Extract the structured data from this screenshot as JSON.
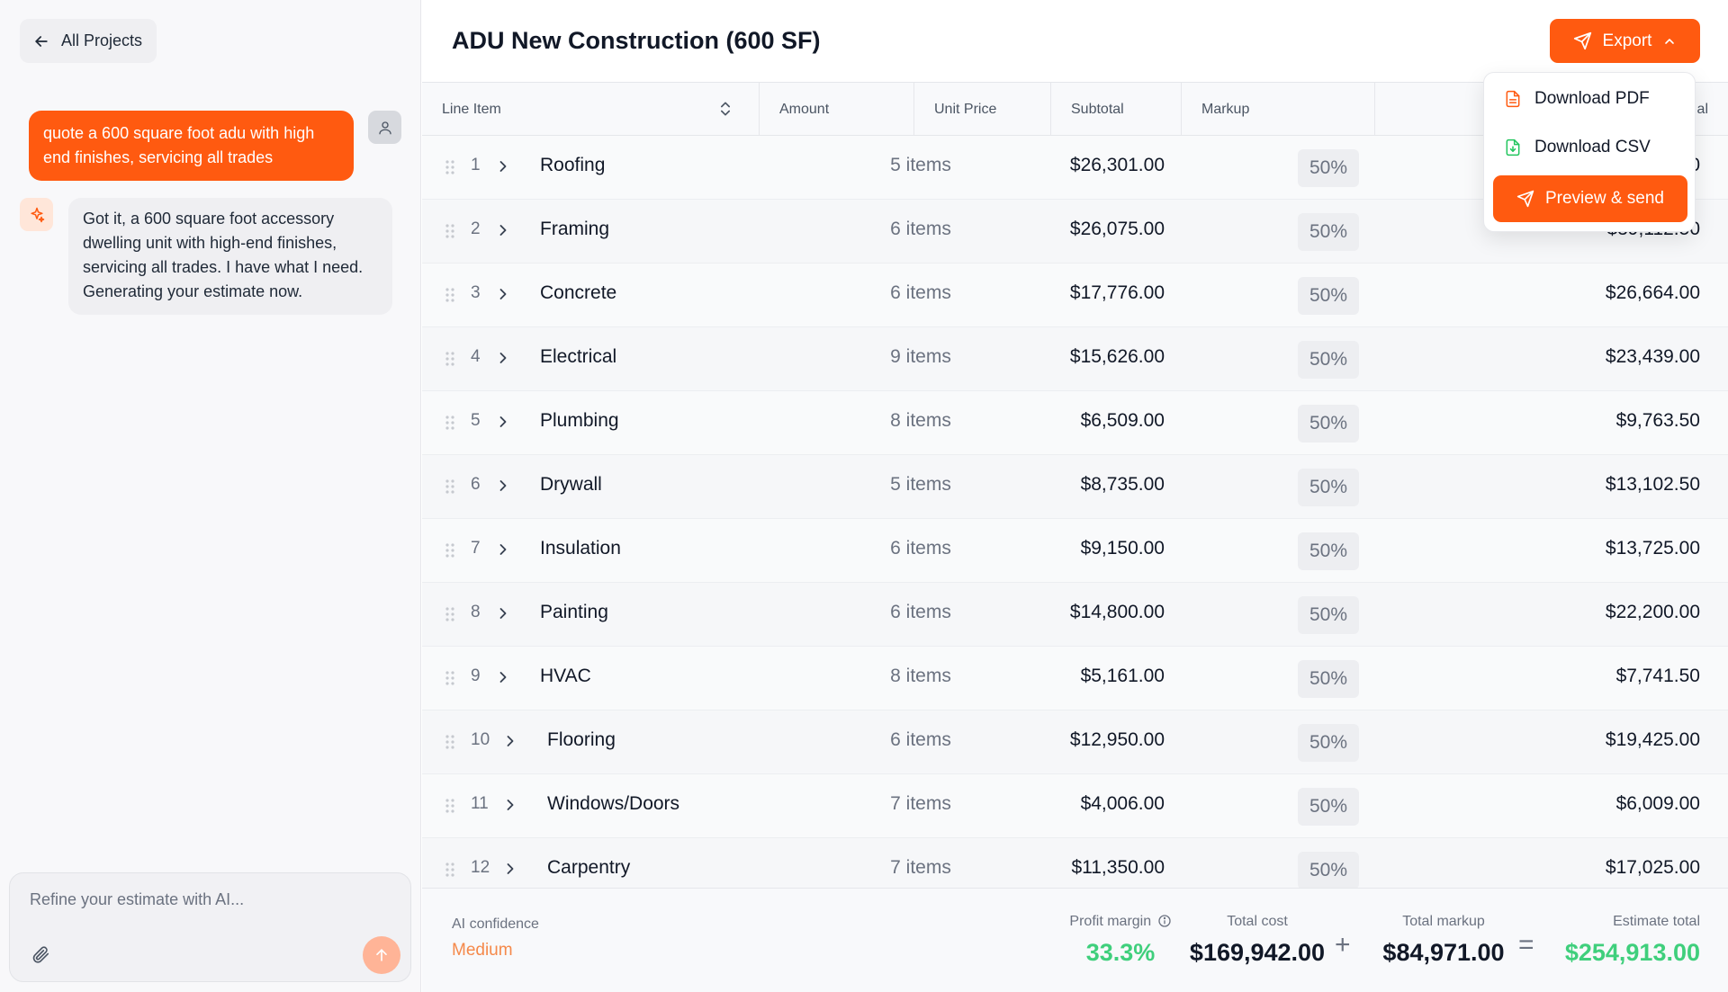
{
  "chat": {
    "back_label": "All Projects",
    "user_message": "quote a 600 square foot adu with high end finishes, servicing all trades",
    "ai_message": "Got it, a 600 square foot accessory dwelling unit with high-end finishes, servicing all trades. I have what I need. Generating your estimate now.",
    "input_placeholder": "Refine your estimate with AI..."
  },
  "header": {
    "title": "ADU New Construction (600 SF)",
    "export_label": "Export"
  },
  "export_menu": {
    "download_pdf": "Download PDF",
    "download_csv": "Download CSV",
    "preview_send": "Preview & send"
  },
  "table": {
    "columns": {
      "line_item": "Line Item",
      "amount": "Amount",
      "unit_price": "Unit Price",
      "subtotal": "Subtotal",
      "markup": "Markup",
      "total_partial": "al"
    },
    "rows": [
      {
        "num": "1",
        "name": "Roofing",
        "items": "5 items",
        "subtotal": "$26,301.00",
        "markup": "50%",
        "total": "0"
      },
      {
        "num": "2",
        "name": "Framing",
        "items": "6 items",
        "subtotal": "$26,075.00",
        "markup": "50%",
        "total": "$39,112.50"
      },
      {
        "num": "3",
        "name": "Concrete",
        "items": "6 items",
        "subtotal": "$17,776.00",
        "markup": "50%",
        "total": "$26,664.00"
      },
      {
        "num": "4",
        "name": "Electrical",
        "items": "9 items",
        "subtotal": "$15,626.00",
        "markup": "50%",
        "total": "$23,439.00"
      },
      {
        "num": "5",
        "name": "Plumbing",
        "items": "8 items",
        "subtotal": "$6,509.00",
        "markup": "50%",
        "total": "$9,763.50"
      },
      {
        "num": "6",
        "name": "Drywall",
        "items": "5 items",
        "subtotal": "$8,735.00",
        "markup": "50%",
        "total": "$13,102.50"
      },
      {
        "num": "7",
        "name": "Insulation",
        "items": "6 items",
        "subtotal": "$9,150.00",
        "markup": "50%",
        "total": "$13,725.00"
      },
      {
        "num": "8",
        "name": "Painting",
        "items": "6 items",
        "subtotal": "$14,800.00",
        "markup": "50%",
        "total": "$22,200.00"
      },
      {
        "num": "9",
        "name": "HVAC",
        "items": "8 items",
        "subtotal": "$5,161.00",
        "markup": "50%",
        "total": "$7,741.50"
      },
      {
        "num": "10",
        "name": "Flooring",
        "items": "6 items",
        "subtotal": "$12,950.00",
        "markup": "50%",
        "total": "$19,425.00"
      },
      {
        "num": "11",
        "name": "Windows/Doors",
        "items": "7 items",
        "subtotal": "$4,006.00",
        "markup": "50%",
        "total": "$6,009.00"
      },
      {
        "num": "12",
        "name": "Carpentry",
        "items": "7 items",
        "subtotal": "$11,350.00",
        "markup": "50%",
        "total": "$17,025.00"
      }
    ]
  },
  "footer": {
    "confidence_label": "AI confidence",
    "confidence_value": "Medium",
    "profit_margin_label": "Profit margin",
    "profit_margin_value": "33.3%",
    "total_cost_label": "Total cost",
    "total_cost_value": "$169,942.00",
    "plus": "+",
    "total_markup_label": "Total markup",
    "total_markup_value": "$84,971.00",
    "equals": "=",
    "estimate_total_label": "Estimate total",
    "estimate_total_value": "$254,913.00"
  },
  "colors": {
    "accent": "#ff5a10",
    "positive": "#3fcf7c",
    "confidence": "#f5894a"
  }
}
